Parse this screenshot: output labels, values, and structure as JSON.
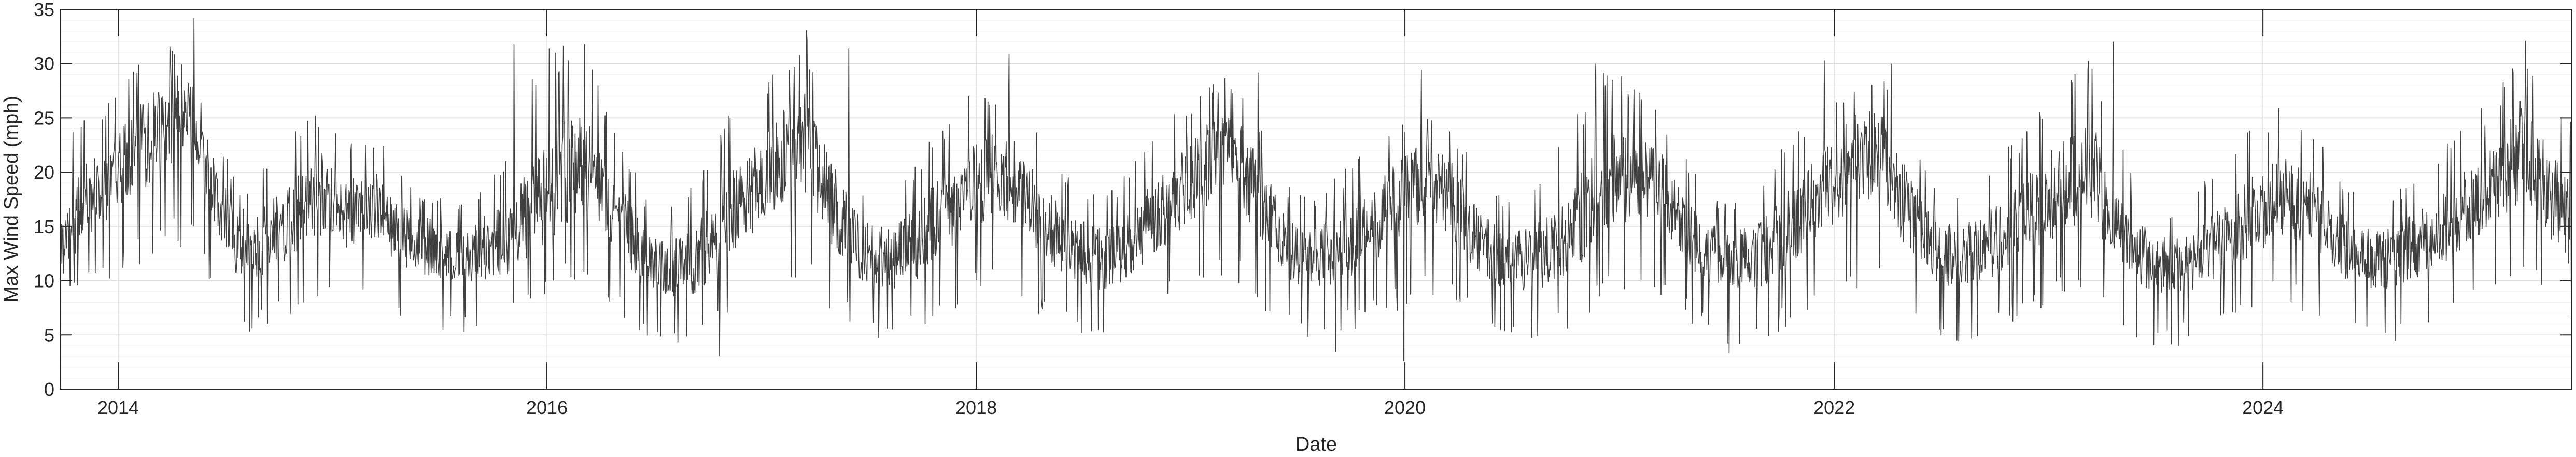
{
  "chart_data": {
    "type": "line",
    "title": "",
    "xlabel": "Date",
    "ylabel": "Max Wind Speed (mph)",
    "xlim": [
      "2013-09-25",
      "2025-06-10"
    ],
    "ylim": [
      0,
      35
    ],
    "x_ticks": [
      "2014",
      "2016",
      "2018",
      "2020",
      "2022",
      "2024"
    ],
    "y_ticks": [
      0,
      5,
      10,
      15,
      20,
      25,
      30,
      35
    ],
    "grid": true,
    "minor_grid": true,
    "legend": "none",
    "series": [
      {
        "color": "#404040",
        "x": [
          "2013-09-25",
          "2013-11-01",
          "2013-12-15",
          "2014-02-01",
          "2014-03-15",
          "2014-05-01",
          "2014-06-15",
          "2014-08-01",
          "2014-09-15",
          "2014-11-01",
          "2014-12-15",
          "2015-02-01",
          "2015-03-15",
          "2015-05-01",
          "2015-06-15",
          "2015-08-01",
          "2015-09-15",
          "2015-11-01",
          "2015-12-15",
          "2016-02-01",
          "2016-03-15",
          "2016-05-01",
          "2016-06-15",
          "2016-08-01",
          "2016-09-15",
          "2016-11-01",
          "2016-12-15",
          "2017-02-01",
          "2017-03-15",
          "2017-05-01",
          "2017-06-15",
          "2017-08-01",
          "2017-09-15",
          "2017-11-01",
          "2017-12-15",
          "2018-02-01",
          "2018-03-15",
          "2018-05-01",
          "2018-06-15",
          "2018-08-01",
          "2018-09-15",
          "2018-11-01",
          "2018-12-15",
          "2019-02-01",
          "2019-03-15",
          "2019-05-01",
          "2019-06-15",
          "2019-08-01",
          "2019-09-15",
          "2019-11-01",
          "2019-12-15",
          "2020-02-01",
          "2020-03-15",
          "2020-05-01",
          "2020-06-15",
          "2020-08-01",
          "2020-09-15",
          "2020-11-01",
          "2020-12-15",
          "2021-02-01",
          "2021-03-15",
          "2021-05-01",
          "2021-06-15",
          "2021-08-01",
          "2021-09-15",
          "2021-11-01",
          "2021-12-15",
          "2022-02-01",
          "2022-03-15",
          "2022-05-01",
          "2022-06-15",
          "2022-08-01",
          "2022-09-15",
          "2022-11-01",
          "2022-12-15",
          "2023-02-01",
          "2023-03-15",
          "2023-05-01",
          "2023-06-15",
          "2023-08-01",
          "2023-09-15",
          "2023-11-01",
          "2023-12-15",
          "2024-02-01",
          "2024-03-15",
          "2024-05-01",
          "2024-06-15",
          "2024-08-01",
          "2024-09-15",
          "2024-11-01",
          "2024-12-15",
          "2025-02-01",
          "2025-03-15",
          "2025-05-01",
          "2025-06-10"
        ],
        "y": [
          13,
          17,
          19,
          22,
          24,
          26,
          18,
          12,
          14,
          16,
          18,
          16,
          17,
          14,
          13,
          12,
          13,
          14,
          17,
          20,
          21,
          16,
          12,
          11,
          12,
          16,
          18,
          21,
          23,
          17,
          13,
          12,
          13,
          16,
          18,
          20,
          19,
          15,
          13,
          12,
          13,
          16,
          18,
          21,
          22,
          17,
          13,
          12,
          13,
          15,
          17,
          19,
          18,
          14,
          12,
          12,
          13,
          16,
          19,
          20,
          18,
          14,
          12,
          12,
          13,
          16,
          18,
          21,
          22,
          17,
          13,
          12,
          13,
          15,
          17,
          19,
          20,
          15,
          12,
          11,
          12,
          14,
          16,
          18,
          17,
          14,
          12,
          12,
          13,
          15,
          17,
          19,
          22,
          18,
          15
        ],
        "y_min": [
          8,
          9,
          10,
          11,
          13,
          13,
          9,
          5,
          6,
          7,
          8,
          7,
          8,
          6,
          5,
          5,
          5,
          6,
          8,
          9,
          10,
          7,
          5,
          4,
          4,
          6,
          8,
          9,
          10,
          7,
          5,
          4,
          5,
          6,
          8,
          9,
          8,
          6,
          5,
          4,
          5,
          7,
          8,
          10,
          10,
          7,
          5,
          4,
          5,
          6,
          7,
          8,
          8,
          6,
          5,
          4,
          5,
          6,
          8,
          9,
          8,
          6,
          4,
          4,
          5,
          6,
          8,
          9,
          10,
          7,
          5,
          4,
          5,
          6,
          7,
          8,
          9,
          6,
          4,
          4,
          5,
          6,
          7,
          8,
          7,
          6,
          5,
          4,
          5,
          6,
          7,
          8,
          9,
          8,
          6
        ],
        "y_max": [
          22,
          26,
          27,
          30,
          34,
          29,
          24,
          18,
          22,
          24,
          26,
          23,
          24,
          20,
          18,
          17,
          19,
          22,
          31,
          32,
          30,
          24,
          18,
          17,
          20,
          25,
          27,
          30,
          33,
          25,
          19,
          18,
          21,
          24,
          27,
          28,
          27,
          22,
          19,
          18,
          20,
          24,
          26,
          29,
          29,
          25,
          19,
          18,
          20,
          23,
          25,
          26,
          25,
          21,
          18,
          18,
          22,
          27,
          30,
          28,
          25,
          21,
          18,
          18,
          21,
          24,
          27,
          29,
          30,
          25,
          19,
          18,
          20,
          23,
          26,
          29,
          32,
          23,
          18,
          17,
          19,
          22,
          25,
          26,
          25,
          21,
          18,
          18,
          20,
          23,
          25,
          27,
          32,
          28,
          25
        ],
        "peaks": [
          {
            "x": "2014-05-10",
            "y": 34.2
          },
          {
            "x": "2015-11-06",
            "y": 31.8
          },
          {
            "x": "2016-03-05",
            "y": 31.8
          },
          {
            "x": "2017-03-18",
            "y": 33.1
          },
          {
            "x": "2017-05-29",
            "y": 31.4
          },
          {
            "x": "2018-02-26",
            "y": 30.9
          },
          {
            "x": "2019-04-26",
            "y": 29.2
          },
          {
            "x": "2020-01-29",
            "y": 29.4
          },
          {
            "x": "2020-11-21",
            "y": 30.0
          },
          {
            "x": "2021-12-15",
            "y": 30.3
          },
          {
            "x": "2022-04-08",
            "y": 30.0
          },
          {
            "x": "2023-04-21",
            "y": 32.0
          },
          {
            "x": "2025-03-23",
            "y": 32.1
          }
        ],
        "troughs": [
          {
            "x": "2016-10-21",
            "y": 3.0
          },
          {
            "x": "2019-09-05",
            "y": 3.4
          },
          {
            "x": "2019-12-30",
            "y": 2.6
          },
          {
            "x": "2021-07-06",
            "y": 3.3
          },
          {
            "x": "2023-08-10",
            "y": 4.0
          }
        ]
      }
    ]
  }
}
